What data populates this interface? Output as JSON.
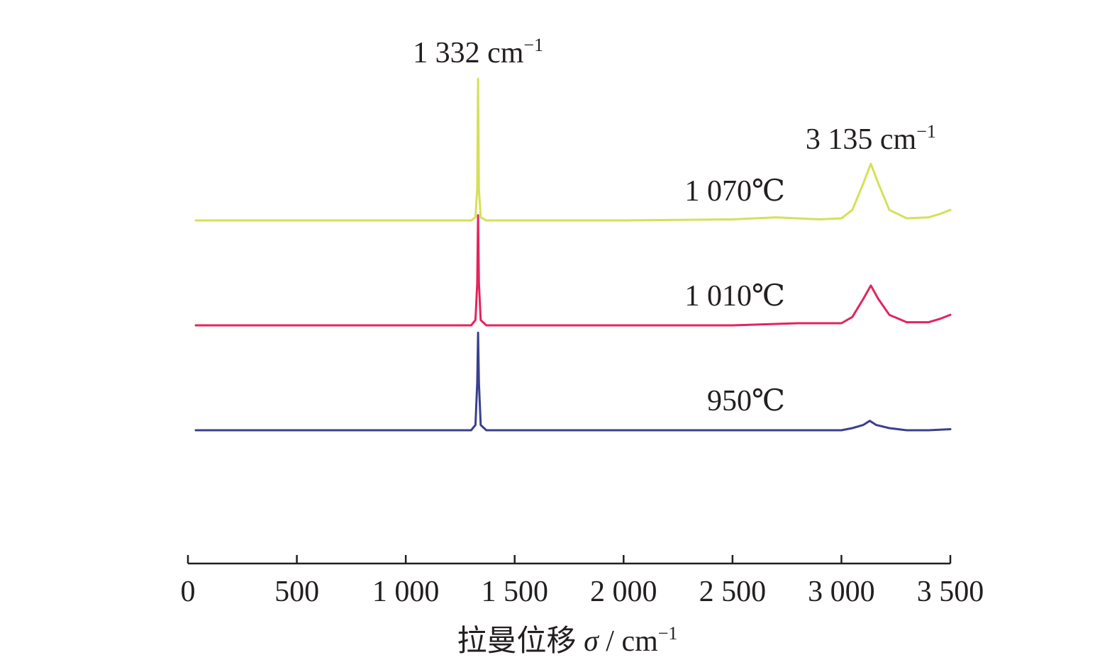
{
  "chart_data": {
    "type": "line",
    "xlabel": "拉曼位移",
    "xlabel_symbol": "σ",
    "xlabel_unit": "/ cm",
    "xlabel_unit_sup": "−1",
    "xlim": [
      0,
      3500
    ],
    "x_ticks": [
      0,
      500,
      1000,
      1500,
      2000,
      2500,
      3000,
      3500
    ],
    "x_tick_labels": [
      "0",
      "500",
      "1 000",
      "1 500",
      "2 000",
      "2 500",
      "3 000",
      "3 500"
    ],
    "y_axis_visible": false,
    "grid": false,
    "series": [
      {
        "name": "1 070℃",
        "color": "#d4e157",
        "baseline": 2.0,
        "points": [
          [
            0,
            2.0
          ],
          [
            500,
            2.0
          ],
          [
            1000,
            2.0
          ],
          [
            1300,
            2.0
          ],
          [
            1320,
            2.03
          ],
          [
            1328,
            2.3
          ],
          [
            1332,
            3.35
          ],
          [
            1336,
            2.3
          ],
          [
            1344,
            2.03
          ],
          [
            1370,
            2.0
          ],
          [
            1500,
            2.0
          ],
          [
            2000,
            2.0
          ],
          [
            2500,
            2.01
          ],
          [
            2700,
            2.03
          ],
          [
            2900,
            2.01
          ],
          [
            3000,
            2.02
          ],
          [
            3050,
            2.1
          ],
          [
            3100,
            2.35
          ],
          [
            3135,
            2.54
          ],
          [
            3170,
            2.35
          ],
          [
            3220,
            2.1
          ],
          [
            3300,
            2.02
          ],
          [
            3400,
            2.03
          ],
          [
            3450,
            2.06
          ],
          [
            3500,
            2.1
          ]
        ]
      },
      {
        "name": "1 010℃",
        "color": "#e3245c",
        "baseline": 1.0,
        "points": [
          [
            0,
            1.0
          ],
          [
            500,
            1.0
          ],
          [
            1000,
            1.0
          ],
          [
            1300,
            1.0
          ],
          [
            1320,
            1.05
          ],
          [
            1328,
            1.4
          ],
          [
            1332,
            2.05
          ],
          [
            1336,
            1.4
          ],
          [
            1344,
            1.05
          ],
          [
            1370,
            1.0
          ],
          [
            1500,
            1.0
          ],
          [
            2000,
            1.0
          ],
          [
            2500,
            1.0
          ],
          [
            2800,
            1.02
          ],
          [
            3000,
            1.02
          ],
          [
            3050,
            1.08
          ],
          [
            3100,
            1.25
          ],
          [
            3135,
            1.38
          ],
          [
            3170,
            1.25
          ],
          [
            3220,
            1.1
          ],
          [
            3300,
            1.03
          ],
          [
            3400,
            1.03
          ],
          [
            3450,
            1.06
          ],
          [
            3500,
            1.1
          ]
        ]
      },
      {
        "name": "950℃",
        "color": "#3b3f8f",
        "baseline": 0.0,
        "points": [
          [
            0,
            0.0
          ],
          [
            500,
            0.0
          ],
          [
            1000,
            0.0
          ],
          [
            1300,
            0.0
          ],
          [
            1320,
            0.05
          ],
          [
            1328,
            0.45
          ],
          [
            1332,
            0.93
          ],
          [
            1336,
            0.45
          ],
          [
            1344,
            0.05
          ],
          [
            1370,
            0.0
          ],
          [
            1500,
            0.0
          ],
          [
            2000,
            0.0
          ],
          [
            2500,
            0.0
          ],
          [
            2900,
            0.0
          ],
          [
            3000,
            0.0
          ],
          [
            3050,
            0.02
          ],
          [
            3100,
            0.05
          ],
          [
            3130,
            0.09
          ],
          [
            3160,
            0.05
          ],
          [
            3220,
            0.02
          ],
          [
            3300,
            0.0
          ],
          [
            3400,
            0.0
          ],
          [
            3500,
            0.01
          ]
        ]
      }
    ],
    "annotations": [
      {
        "text": "1 332 cm",
        "sup": "−1",
        "x": 1332,
        "near_series": "1 070℃"
      },
      {
        "text": "3 135 cm",
        "sup": "−1",
        "x": 3135,
        "near_series": "1 070℃"
      }
    ]
  }
}
